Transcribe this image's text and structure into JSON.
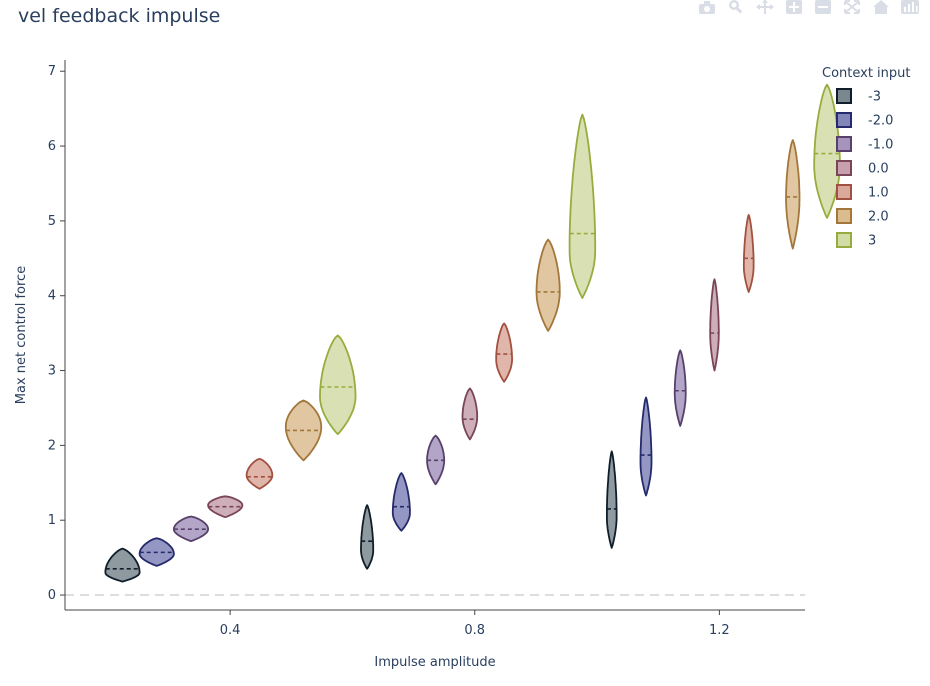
{
  "modebar": {
    "icons": [
      "camera-icon",
      "zoom-icon",
      "pan-icon",
      "zoom-in-icon",
      "zoom-out-icon",
      "autoscale-icon",
      "home-icon",
      "plotly-logo-icon"
    ],
    "color": "#d9dde5"
  },
  "chart_data": {
    "type": "violin",
    "title": "vel feedback impulse",
    "xlabel": "Impulse amplitude",
    "ylabel": "Max net control force",
    "xlim": [
      0.13,
      1.34
    ],
    "ylim": [
      -0.2,
      7.15
    ],
    "xticks": [
      {
        "value": 0.4,
        "label": "0.4"
      },
      {
        "value": 0.8,
        "label": "0.8"
      },
      {
        "value": 1.2,
        "label": "1.2"
      }
    ],
    "yticks": [
      {
        "value": 0,
        "label": "0"
      },
      {
        "value": 1,
        "label": "1"
      },
      {
        "value": 2,
        "label": "2"
      },
      {
        "value": 3,
        "label": "3"
      },
      {
        "value": 4,
        "label": "4"
      },
      {
        "value": 5,
        "label": "5"
      },
      {
        "value": 6,
        "label": "6"
      },
      {
        "value": 7,
        "label": "7"
      }
    ],
    "zero_line": {
      "y": 0,
      "style": "dashed",
      "color": "#bbbbbb"
    },
    "grid": false,
    "legend": {
      "title": "Context input",
      "placement": "top-right"
    },
    "series": [
      {
        "name": "-3",
        "line": "#0f1e2b",
        "fill": "#7b878f",
        "violins": [
          {
            "x": 0.224,
            "min": 0.18,
            "max": 0.62,
            "median": 0.35,
            "max_width": 0.028,
            "peak": 0.3
          },
          {
            "x": 0.624,
            "min": 0.35,
            "max": 1.2,
            "median": 0.72,
            "max_width": 0.01,
            "peak": 0.6
          },
          {
            "x": 1.024,
            "min": 0.63,
            "max": 1.92,
            "median": 1.15,
            "max_width": 0.008,
            "peak": 1.05
          }
        ]
      },
      {
        "name": "-2.0",
        "line": "#242a6b",
        "fill": "#8185b8",
        "violins": [
          {
            "x": 0.28,
            "min": 0.39,
            "max": 0.76,
            "median": 0.57,
            "max_width": 0.028,
            "peak": 0.55
          },
          {
            "x": 0.68,
            "min": 0.86,
            "max": 1.63,
            "median": 1.18,
            "max_width": 0.014,
            "peak": 1.1
          },
          {
            "x": 1.08,
            "min": 1.33,
            "max": 2.64,
            "median": 1.87,
            "max_width": 0.009,
            "peak": 1.78
          }
        ]
      },
      {
        "name": "-1.0",
        "line": "#58406b",
        "fill": "#a595bd",
        "violins": [
          {
            "x": 0.336,
            "min": 0.72,
            "max": 1.05,
            "median": 0.88,
            "max_width": 0.028,
            "peak": 0.88
          },
          {
            "x": 0.736,
            "min": 1.48,
            "max": 2.13,
            "median": 1.8,
            "max_width": 0.014,
            "peak": 1.8
          },
          {
            "x": 1.136,
            "min": 2.26,
            "max": 3.27,
            "median": 2.73,
            "max_width": 0.009,
            "peak": 2.7
          }
        ]
      },
      {
        "name": "0.0",
        "line": "#7a4556",
        "fill": "#c6a1ad",
        "violins": [
          {
            "x": 0.392,
            "min": 1.04,
            "max": 1.32,
            "median": 1.18,
            "max_width": 0.028,
            "peak": 1.2
          },
          {
            "x": 0.792,
            "min": 2.08,
            "max": 2.76,
            "median": 2.35,
            "max_width": 0.012,
            "peak": 2.38
          },
          {
            "x": 1.192,
            "min": 3.0,
            "max": 4.22,
            "median": 3.5,
            "max_width": 0.007,
            "peak": 3.5
          }
        ]
      },
      {
        "name": "1.0",
        "line": "#a2503f",
        "fill": "#dba99b",
        "violins": [
          {
            "x": 0.448,
            "min": 1.42,
            "max": 1.82,
            "median": 1.58,
            "max_width": 0.021,
            "peak": 1.6
          },
          {
            "x": 0.848,
            "min": 2.85,
            "max": 3.63,
            "median": 3.22,
            "max_width": 0.013,
            "peak": 3.15
          },
          {
            "x": 1.248,
            "min": 4.05,
            "max": 5.08,
            "median": 4.5,
            "max_width": 0.008,
            "peak": 4.4
          }
        ]
      },
      {
        "name": "2.0",
        "line": "#a3773a",
        "fill": "#dbbc91",
        "violins": [
          {
            "x": 0.52,
            "min": 1.8,
            "max": 2.6,
            "median": 2.2,
            "max_width": 0.029,
            "peak": 2.25
          },
          {
            "x": 0.92,
            "min": 3.53,
            "max": 4.75,
            "median": 4.05,
            "max_width": 0.019,
            "peak": 4.05
          },
          {
            "x": 1.32,
            "min": 4.63,
            "max": 6.08,
            "median": 5.32,
            "max_width": 0.011,
            "peak": 5.3
          }
        ]
      },
      {
        "name": "3",
        "line": "#96ad3e",
        "fill": "#d2dca7",
        "violins": [
          {
            "x": 0.576,
            "min": 2.15,
            "max": 3.47,
            "median": 2.78,
            "max_width": 0.029,
            "peak": 2.65
          },
          {
            "x": 0.976,
            "min": 3.97,
            "max": 6.42,
            "median": 4.83,
            "max_width": 0.021,
            "peak": 4.6
          },
          {
            "x": 1.376,
            "min": 5.04,
            "max": 6.82,
            "median": 5.9,
            "max_width": 0.021,
            "peak": 5.75
          }
        ]
      }
    ]
  }
}
